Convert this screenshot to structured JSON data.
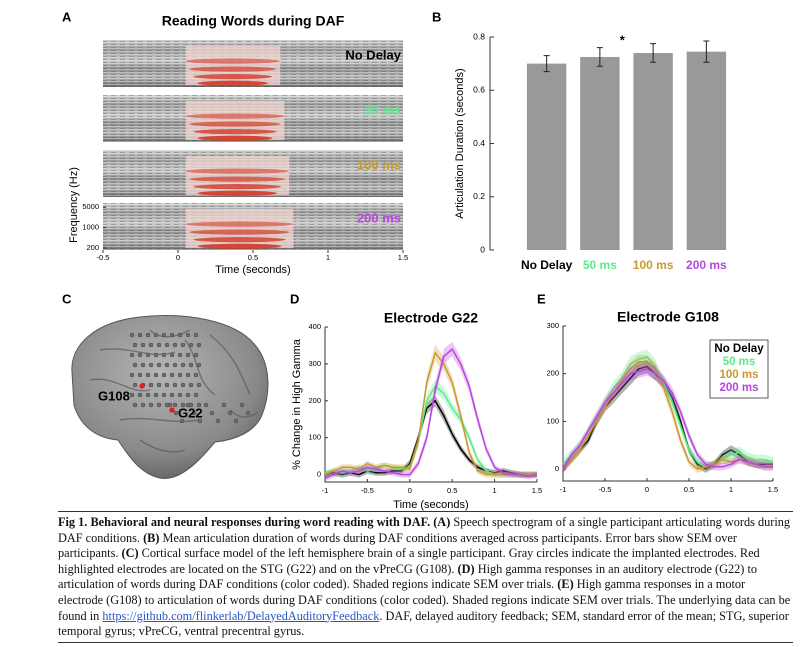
{
  "panel_labels": [
    "A",
    "B",
    "C",
    "D",
    "E"
  ],
  "spectrogram": {
    "title": "Reading Words during DAF",
    "xlabel": "Time (seconds)",
    "ylabel": "Frequency (Hz)",
    "xlim": [
      -0.5,
      1.5
    ],
    "xticks": [
      -0.5,
      0,
      0.5,
      1,
      1.5
    ],
    "ylim": [
      170,
      7000
    ],
    "yticks": [
      5000,
      1000,
      200
    ],
    "log_y": true,
    "rows": [
      {
        "label": "No Delay",
        "color": "#000000"
      },
      {
        "label": "50 ms",
        "color": "#5ee88a"
      },
      {
        "label": "100 ms",
        "color": "#c99a2e"
      },
      {
        "label": "200 ms",
        "color": "#b845e0"
      }
    ]
  },
  "brain": {
    "electrodes": [
      "G108",
      "G22"
    ]
  },
  "chart_data": [
    {
      "type": "bar",
      "ylabel": "Articulation Duration (seconds)",
      "categories": [
        "No Delay",
        "50 ms",
        "100 ms",
        "200 ms"
      ],
      "category_colors": [
        "#000000",
        "#5ee88a",
        "#c99a2e",
        "#b845e0"
      ],
      "values": [
        0.7,
        0.725,
        0.74,
        0.745
      ],
      "errors": [
        0.03,
        0.035,
        0.035,
        0.04
      ],
      "color": "#999999",
      "ylim": [
        0,
        0.8
      ],
      "yticks": [
        0,
        0.2,
        0.4,
        0.6,
        0.8
      ],
      "annotation": "*"
    },
    {
      "type": "line",
      "title": "Electrode G22",
      "xlabel": "Time (seconds)",
      "ylabel": "% Change in High Gamma",
      "x": [
        -1,
        -0.9,
        -0.8,
        -0.7,
        -0.6,
        -0.5,
        -0.4,
        -0.3,
        -0.2,
        -0.1,
        0,
        0.1,
        0.2,
        0.3,
        0.4,
        0.5,
        0.6,
        0.7,
        0.8,
        0.9,
        1,
        1.1,
        1.2,
        1.3,
        1.4,
        1.5
      ],
      "xlim": [
        -1,
        1.5
      ],
      "xticks": [
        -1,
        -0.5,
        0,
        0.5,
        1,
        1.5
      ],
      "ylim": [
        -20,
        400
      ],
      "yticks": [
        0,
        100,
        200,
        300,
        400
      ],
      "series": [
        {
          "color": "#000000",
          "values": [
            0,
            5,
            0,
            5,
            0,
            10,
            5,
            5,
            10,
            10,
            30,
            100,
            180,
            200,
            160,
            110,
            70,
            40,
            20,
            10,
            5,
            10,
            5,
            0,
            0,
            0
          ],
          "errors": [
            8,
            8,
            8,
            8,
            8,
            8,
            8,
            8,
            8,
            8,
            10,
            12,
            15,
            15,
            15,
            12,
            10,
            8,
            8,
            8,
            8,
            8,
            8,
            8,
            8,
            8
          ]
        },
        {
          "color": "#5ee88a",
          "values": [
            5,
            10,
            5,
            10,
            20,
            10,
            15,
            25,
            20,
            15,
            20,
            90,
            200,
            240,
            220,
            180,
            150,
            100,
            40,
            10,
            0,
            0,
            0,
            0,
            0,
            0
          ],
          "errors": [
            8,
            8,
            8,
            8,
            8,
            8,
            8,
            8,
            8,
            8,
            10,
            14,
            18,
            18,
            18,
            15,
            14,
            12,
            10,
            8,
            8,
            8,
            8,
            8,
            8,
            8
          ]
        },
        {
          "color": "#c99a2e",
          "values": [
            0,
            10,
            20,
            20,
            15,
            30,
            20,
            25,
            20,
            20,
            15,
            90,
            250,
            330,
            300,
            250,
            160,
            60,
            10,
            0,
            0,
            0,
            0,
            0,
            0,
            0
          ],
          "errors": [
            8,
            8,
            8,
            8,
            8,
            8,
            8,
            8,
            8,
            8,
            10,
            15,
            20,
            22,
            20,
            18,
            15,
            12,
            8,
            8,
            8,
            8,
            8,
            8,
            8,
            8
          ]
        },
        {
          "color": "#b845e0",
          "values": [
            -10,
            0,
            10,
            5,
            10,
            20,
            15,
            10,
            5,
            0,
            0,
            30,
            100,
            230,
            320,
            340,
            300,
            240,
            150,
            70,
            20,
            5,
            0,
            0,
            -5,
            0
          ],
          "errors": [
            8,
            8,
            8,
            8,
            8,
            8,
            8,
            8,
            8,
            8,
            8,
            10,
            14,
            18,
            20,
            20,
            18,
            16,
            14,
            10,
            8,
            8,
            8,
            8,
            8,
            8
          ]
        }
      ]
    },
    {
      "type": "line",
      "title": "Electrode G108",
      "x": [
        -1,
        -0.9,
        -0.8,
        -0.7,
        -0.6,
        -0.5,
        -0.4,
        -0.3,
        -0.2,
        -0.1,
        0,
        0.1,
        0.2,
        0.3,
        0.4,
        0.5,
        0.6,
        0.7,
        0.8,
        0.9,
        1,
        1.1,
        1.2,
        1.3,
        1.4,
        1.5
      ],
      "xlim": [
        -1,
        1.5
      ],
      "xticks": [
        -1,
        -0.5,
        0,
        0.5,
        1,
        1.5
      ],
      "ylim": [
        -25,
        300
      ],
      "yticks": [
        0,
        100,
        200,
        300
      ],
      "legend": "upper right",
      "series": [
        {
          "name": "No Delay",
          "color": "#000000",
          "values": [
            0,
            20,
            40,
            60,
            100,
            130,
            150,
            170,
            190,
            210,
            215,
            200,
            180,
            150,
            100,
            40,
            10,
            0,
            10,
            30,
            40,
            30,
            15,
            10,
            10,
            10
          ],
          "errors": [
            8,
            8,
            8,
            8,
            10,
            10,
            12,
            12,
            14,
            14,
            14,
            14,
            12,
            12,
            10,
            8,
            8,
            8,
            8,
            8,
            10,
            10,
            8,
            8,
            8,
            8
          ]
        },
        {
          "name": "50 ms",
          "color": "#5ee88a",
          "values": [
            10,
            30,
            50,
            80,
            110,
            140,
            170,
            190,
            220,
            230,
            235,
            215,
            180,
            140,
            90,
            40,
            15,
            5,
            10,
            20,
            30,
            35,
            25,
            20,
            20,
            15
          ],
          "errors": [
            10,
            10,
            10,
            10,
            12,
            12,
            14,
            14,
            16,
            16,
            16,
            14,
            12,
            12,
            10,
            10,
            8,
            8,
            8,
            10,
            12,
            12,
            10,
            10,
            10,
            10
          ]
        },
        {
          "name": "100 ms",
          "color": "#c99a2e",
          "values": [
            0,
            20,
            40,
            70,
            100,
            130,
            160,
            185,
            210,
            225,
            225,
            210,
            170,
            120,
            60,
            15,
            0,
            5,
            10,
            20,
            15,
            20,
            15,
            10,
            5,
            5
          ],
          "errors": [
            8,
            8,
            8,
            8,
            10,
            10,
            12,
            12,
            14,
            14,
            14,
            14,
            12,
            12,
            10,
            8,
            8,
            8,
            8,
            8,
            8,
            8,
            8,
            8,
            8,
            8
          ]
        },
        {
          "name": "200 ms",
          "color": "#b845e0",
          "values": [
            0,
            30,
            50,
            80,
            110,
            140,
            160,
            180,
            200,
            205,
            210,
            200,
            185,
            160,
            120,
            70,
            30,
            10,
            5,
            5,
            10,
            20,
            15,
            10,
            5,
            5
          ],
          "errors": [
            8,
            8,
            8,
            8,
            10,
            10,
            12,
            12,
            14,
            14,
            14,
            14,
            12,
            12,
            10,
            10,
            8,
            8,
            8,
            8,
            8,
            8,
            8,
            8,
            8,
            8
          ]
        }
      ]
    }
  ],
  "caption": {
    "runs": [
      {
        "text": "Fig 1. Behavioral and neural responses during word reading with DAF. (A)",
        "bold": true
      },
      {
        "text": " Speech spectrogram of a single participant articulating words during DAF conditions. "
      },
      {
        "text": "(B)",
        "bold": true
      },
      {
        "text": " Mean articulation duration of words during DAF conditions averaged across participants. Error bars show SEM over participants. "
      },
      {
        "text": "(C)",
        "bold": true
      },
      {
        "text": " Cortical surface model of the left hemisphere brain of a single participant. Gray circles indicate the implanted electrodes. Red highlighted electrodes are located on the STG (G22) and on the vPreCG (G108). "
      },
      {
        "text": "(D)",
        "bold": true
      },
      {
        "text": " High gamma responses in an auditory electrode (G22) to articulation of words during DAF conditions (color coded). Shaded regions indicate SEM over trials. "
      },
      {
        "text": "(E)",
        "bold": true
      },
      {
        "text": " High gamma responses in a motor electrode (G108) to articulation of words during DAF conditions (color coded). Shaded regions indicate SEM over trials. The underlying data can be found in "
      },
      {
        "text": "https://github.com/flinkerlab/DelayedAuditoryFeedback",
        "link": true
      },
      {
        "text": ". DAF, delayed auditory feedback; SEM, standard error of the mean; STG, superior temporal gyrus; vPreCG, ventral precentral gyrus."
      }
    ]
  }
}
